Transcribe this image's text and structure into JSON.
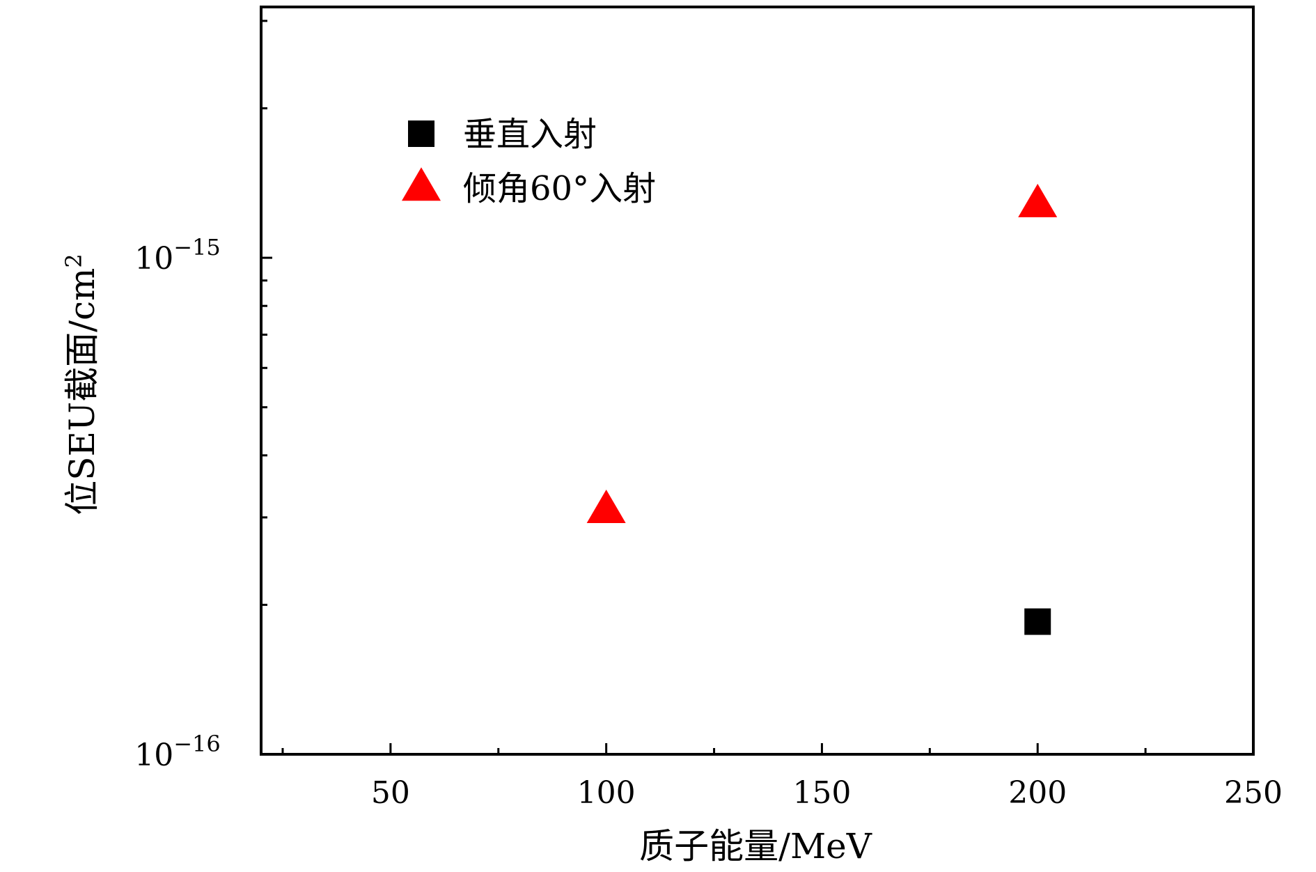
{
  "chart_data": {
    "type": "scatter",
    "title": "",
    "xlabel": "质子能量/MeV",
    "ylabel": "位SEU截面/cm",
    "ylabel_sup": "2",
    "xlim": [
      20,
      250
    ],
    "ylim": [
      1e-16,
      3.2e-15
    ],
    "yscale": "log",
    "xticks": [
      50,
      100,
      150,
      200,
      250
    ],
    "xtick_labels": [
      "50",
      "100",
      "150",
      "200",
      "250"
    ],
    "ytick_labels": [
      {
        "base": "10",
        "exp": "−15",
        "value": 1e-15
      },
      {
        "base": "10",
        "exp": "−16",
        "value": 1e-16
      }
    ],
    "legend_position": "top-left",
    "grid": false,
    "series": [
      {
        "name": "垂直入射",
        "marker": "square",
        "color": "#000000",
        "x": [
          200
        ],
        "y": [
          1.85e-16
        ]
      },
      {
        "name": "倾角60°入射",
        "marker": "triangle",
        "color": "#ff0000",
        "x": [
          100,
          200
        ],
        "y": [
          3.1e-16,
          1.28e-15
        ]
      }
    ]
  }
}
